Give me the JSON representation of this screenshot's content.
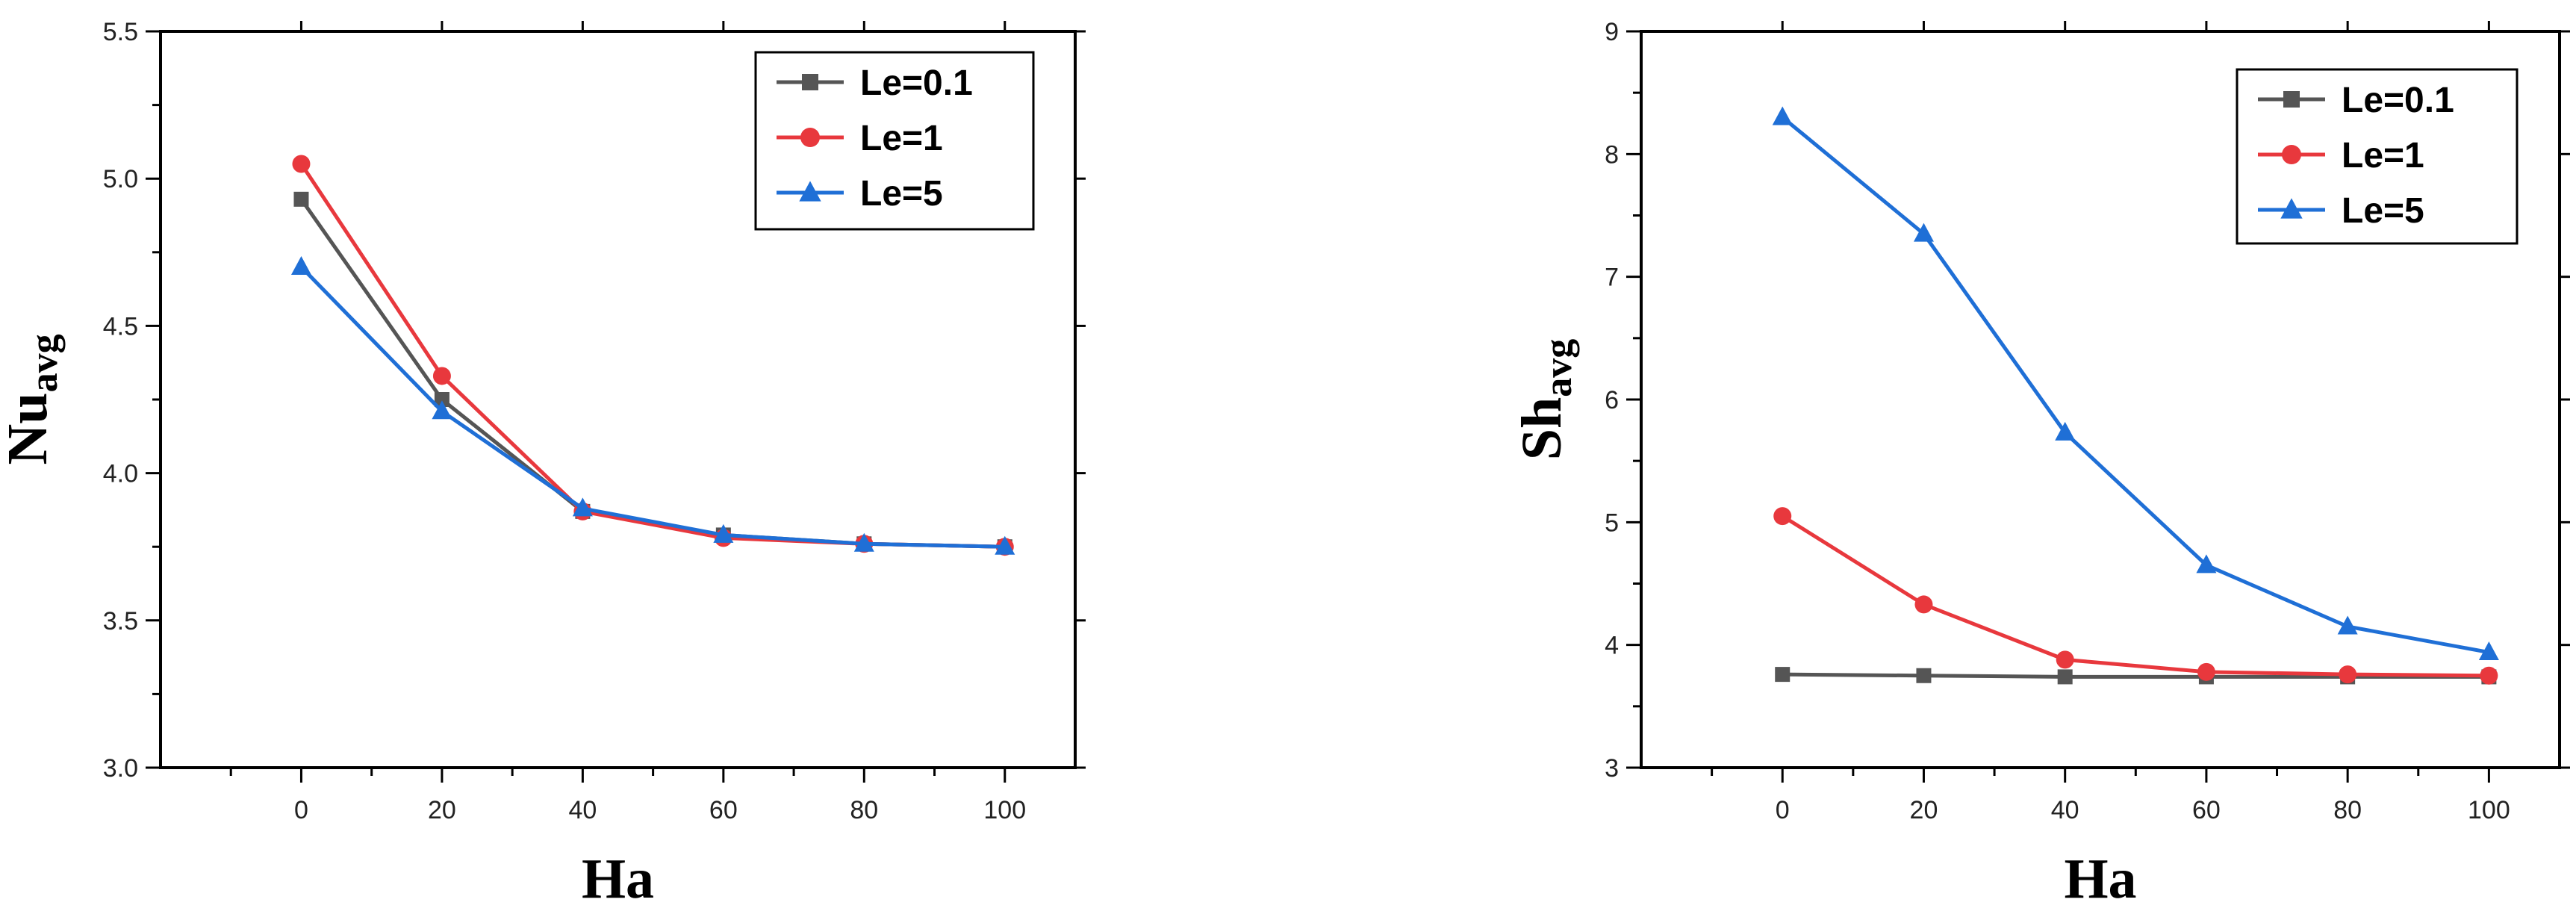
{
  "chart_data": [
    {
      "type": "line",
      "xlabel": "Ha",
      "ylabel_main": "Nu",
      "ylabel_sub": "avg",
      "x": [
        0,
        20,
        40,
        60,
        80,
        100
      ],
      "xlim": [
        -20,
        110
      ],
      "ylim": [
        3.0,
        5.5
      ],
      "xticks": [
        "0",
        "20",
        "40",
        "60",
        "80",
        "100"
      ],
      "yticks": [
        "3.0",
        "3.5",
        "4.0",
        "4.5",
        "5.0",
        "5.5"
      ],
      "grid": false,
      "legend_position": "top-right",
      "series": [
        {
          "name": "Le=0.1",
          "color": "#555555",
          "marker": "square",
          "values": [
            4.93,
            4.25,
            3.87,
            3.79,
            3.76,
            3.75
          ]
        },
        {
          "name": "Le=1",
          "color": "#e8383d",
          "marker": "circle",
          "values": [
            5.05,
            4.33,
            3.87,
            3.78,
            3.76,
            3.75
          ]
        },
        {
          "name": "Le=5",
          "color": "#1f6fd6",
          "marker": "triangle",
          "values": [
            4.7,
            4.21,
            3.88,
            3.79,
            3.76,
            3.75
          ]
        }
      ]
    },
    {
      "type": "line",
      "xlabel": "Ha",
      "ylabel_main": "Sh",
      "ylabel_sub": "avg",
      "x": [
        0,
        20,
        40,
        60,
        80,
        100
      ],
      "xlim": [
        -20,
        110
      ],
      "ylim": [
        3,
        9
      ],
      "xticks": [
        "0",
        "20",
        "40",
        "60",
        "80",
        "100"
      ],
      "yticks": [
        "3",
        "4",
        "5",
        "6",
        "7",
        "8",
        "9"
      ],
      "grid": false,
      "legend_position": "top-right",
      "series": [
        {
          "name": "Le=0.1",
          "color": "#555555",
          "marker": "square",
          "values": [
            3.76,
            3.75,
            3.74,
            3.74,
            3.74,
            3.74
          ]
        },
        {
          "name": "Le=1",
          "color": "#e8383d",
          "marker": "circle",
          "values": [
            5.05,
            4.33,
            3.88,
            3.78,
            3.76,
            3.75
          ]
        },
        {
          "name": "Le=5",
          "color": "#1f6fd6",
          "marker": "triangle",
          "values": [
            8.3,
            7.35,
            5.73,
            4.65,
            4.15,
            3.94
          ]
        }
      ]
    }
  ]
}
